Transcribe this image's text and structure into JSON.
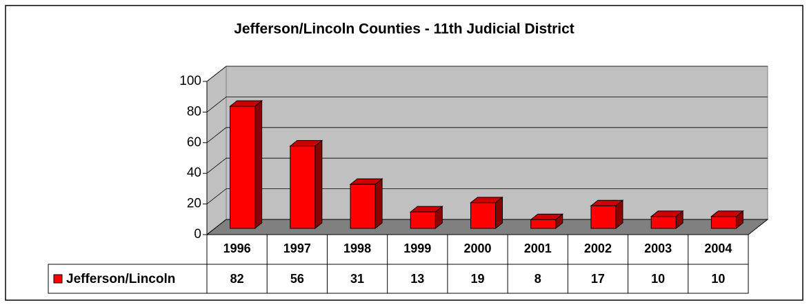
{
  "chart_data": {
    "type": "bar3d",
    "title": "Jefferson/Lincoln Counties - 11th Judicial District",
    "categories": [
      "1996",
      "1997",
      "1998",
      "1999",
      "2000",
      "2001",
      "2002",
      "2003",
      "2004"
    ],
    "series": [
      {
        "name": "Jefferson/Lincoln",
        "color": "#ff0000",
        "values": [
          82,
          56,
          31,
          13,
          19,
          8,
          17,
          10,
          10
        ]
      }
    ],
    "ylim": [
      0,
      100
    ],
    "yticks": [
      0,
      20,
      40,
      60,
      80,
      100
    ],
    "grid": true,
    "legend": "table"
  }
}
